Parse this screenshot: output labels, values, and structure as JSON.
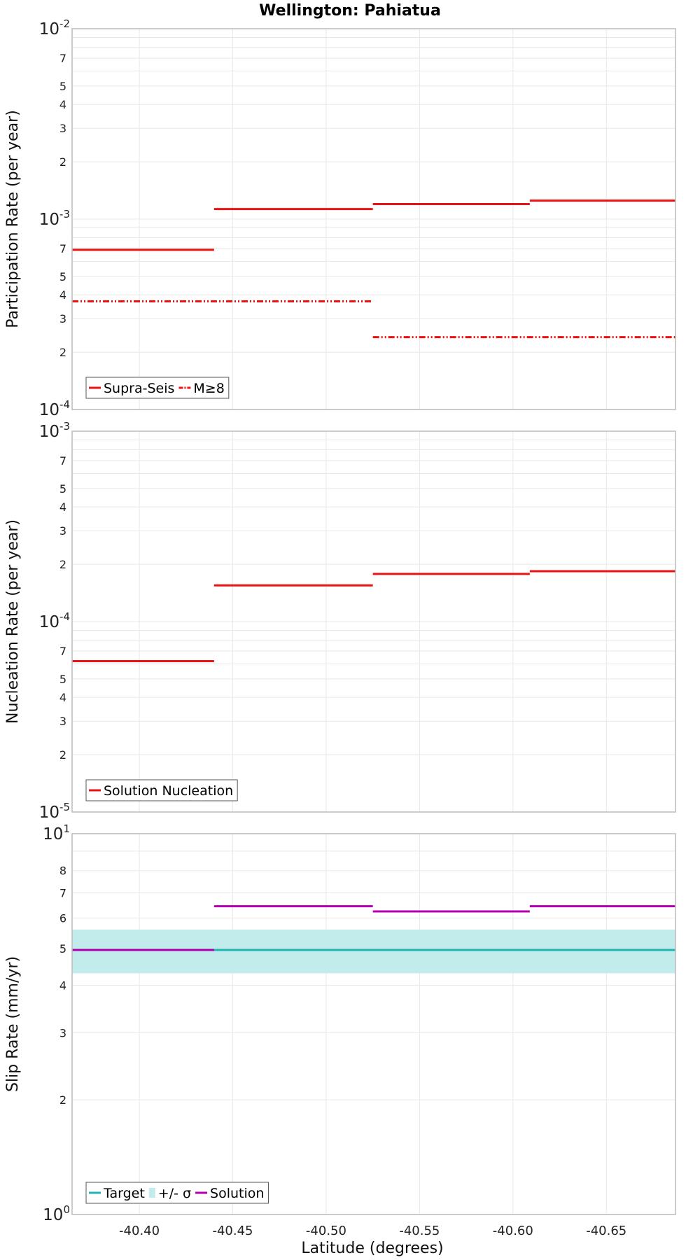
{
  "chart_data": {
    "title": "Wellington: Pahiatua",
    "xlabel": "Latitude (degrees)",
    "x_ticks": [
      "-40.40",
      "-40.45",
      "-40.50",
      "-40.55",
      "-40.60",
      "-40.65"
    ],
    "x_tick_values": [
      -40.4,
      -40.45,
      -40.5,
      -40.55,
      -40.6,
      -40.65
    ],
    "xlim": [
      -40.364,
      -40.687
    ],
    "colors": {
      "red": "#ee1111",
      "teal": "#22b3b3",
      "band": "#c2ecec",
      "purple": "#b300b3",
      "grid": "#e8e8e8",
      "frame": "#bbbbbb"
    },
    "panels": [
      {
        "name": "participation",
        "type": "step",
        "scale": "log",
        "ylabel": "Participation Rate (per year)",
        "ylim": [
          0.0001,
          0.01
        ],
        "decade_labels": [
          {
            "value": 0.0001,
            "base": "10",
            "exp": "-4"
          },
          {
            "value": 0.001,
            "base": "10",
            "exp": "-3"
          },
          {
            "value": 0.01,
            "base": "10",
            "exp": "-2"
          }
        ],
        "minor_labels": [
          "2",
          "3",
          "4",
          "5",
          "7"
        ],
        "series": [
          {
            "name": "Supra-Seis",
            "color": "#ee1111",
            "dash": "solid",
            "segments": [
              {
                "x0": -40.364,
                "x1": -40.44,
                "y": 0.00069
              },
              {
                "x0": -40.44,
                "x1": -40.525,
                "y": 0.00113
              },
              {
                "x0": -40.525,
                "x1": -40.609,
                "y": 0.0012
              },
              {
                "x0": -40.609,
                "x1": -40.687,
                "y": 0.00125
              }
            ]
          },
          {
            "name": "M≥8",
            "color": "#ee1111",
            "dash": "dashdot",
            "segments": [
              {
                "x0": -40.364,
                "x1": -40.525,
                "y": 0.00037
              },
              {
                "x0": -40.525,
                "x1": -40.687,
                "y": 0.00024
              }
            ]
          }
        ],
        "legend": [
          {
            "label": "Supra-Seis",
            "kind": "line",
            "color": "#ee1111",
            "dash": "solid"
          },
          {
            "label": "M≥8",
            "kind": "line",
            "color": "#ee1111",
            "dash": "dashdot"
          }
        ],
        "legend_position": "bottom-left"
      },
      {
        "name": "nucleation",
        "type": "step",
        "scale": "log",
        "ylabel": "Nucleation Rate (per year)",
        "ylim": [
          1e-05,
          0.001
        ],
        "decade_labels": [
          {
            "value": 1e-05,
            "base": "10",
            "exp": "-5"
          },
          {
            "value": 0.0001,
            "base": "10",
            "exp": "-4"
          },
          {
            "value": 0.001,
            "base": "10",
            "exp": "-3"
          }
        ],
        "minor_labels": [
          "2",
          "3",
          "4",
          "5",
          "7"
        ],
        "series": [
          {
            "name": "Solution Nucleation",
            "color": "#ee1111",
            "dash": "solid",
            "segments": [
              {
                "x0": -40.364,
                "x1": -40.44,
                "y": 6.2e-05
              },
              {
                "x0": -40.44,
                "x1": -40.525,
                "y": 0.000155
              },
              {
                "x0": -40.525,
                "x1": -40.609,
                "y": 0.000178
              },
              {
                "x0": -40.609,
                "x1": -40.687,
                "y": 0.000184
              }
            ]
          }
        ],
        "legend": [
          {
            "label": "Solution Nucleation",
            "kind": "line",
            "color": "#ee1111",
            "dash": "solid"
          }
        ],
        "legend_position": "bottom-left"
      },
      {
        "name": "sliprate",
        "type": "step",
        "scale": "log",
        "ylabel": "Slip Rate (mm/yr)",
        "ylim": [
          1,
          10
        ],
        "decade_labels": [
          {
            "value": 1,
            "base": "10",
            "exp": "0"
          },
          {
            "value": 10,
            "base": "10",
            "exp": "1"
          }
        ],
        "minor_labels": [
          "2",
          "3",
          "4",
          "5",
          "6",
          "7",
          "8"
        ],
        "band": {
          "name": "+/- σ",
          "y0": 4.3,
          "y1": 5.6,
          "color": "#c2ecec"
        },
        "series": [
          {
            "name": "Target",
            "color": "#22b3b3",
            "dash": "solid",
            "segments": [
              {
                "x0": -40.364,
                "x1": -40.687,
                "y": 4.95
              }
            ]
          },
          {
            "name": "Solution",
            "color": "#b300b3",
            "dash": "solid",
            "segments": [
              {
                "x0": -40.364,
                "x1": -40.44,
                "y": 4.95
              },
              {
                "x0": -40.44,
                "x1": -40.525,
                "y": 6.45
              },
              {
                "x0": -40.525,
                "x1": -40.609,
                "y": 6.25
              },
              {
                "x0": -40.609,
                "x1": -40.687,
                "y": 6.45
              }
            ]
          }
        ],
        "legend": [
          {
            "label": "Target",
            "kind": "line",
            "color": "#22b3b3",
            "dash": "solid"
          },
          {
            "label": "+/- σ",
            "kind": "box",
            "color": "#c2ecec",
            "dash": "solid"
          },
          {
            "label": "Solution",
            "kind": "line",
            "color": "#b300b3",
            "dash": "solid"
          }
        ],
        "legend_position": "bottom-left"
      }
    ]
  }
}
